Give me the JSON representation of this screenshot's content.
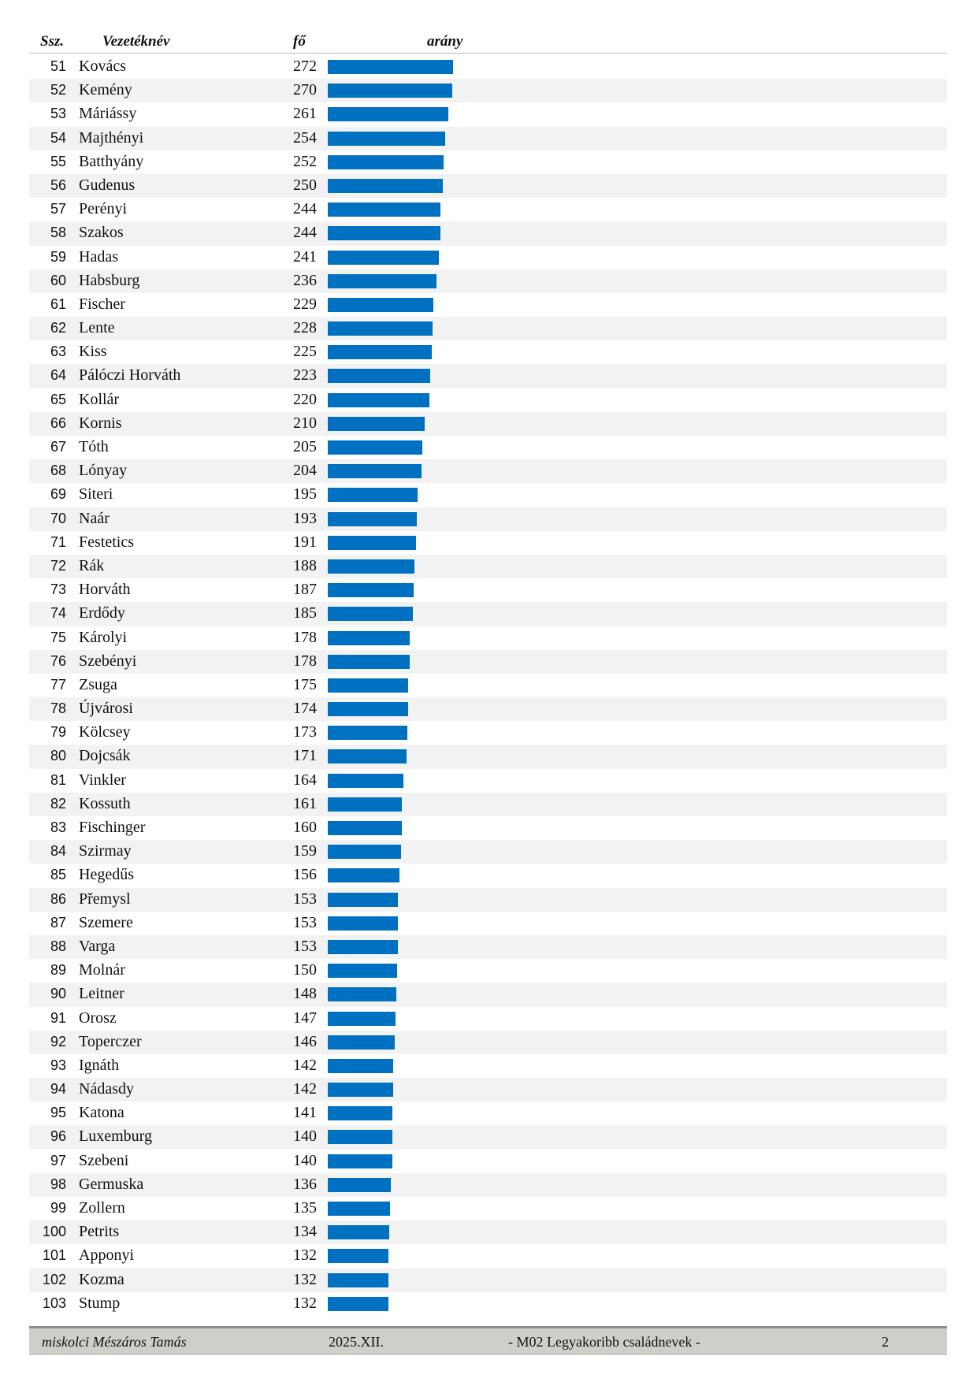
{
  "header": {
    "ssz": "Ssz.",
    "surname": "Vezetéknév",
    "count": "fő",
    "ratio": "arány"
  },
  "colors": {
    "bar": "#0070c0",
    "row_alt": "#f2f2f2",
    "footer_bg": "#d0cec8"
  },
  "chart_data": {
    "type": "bar",
    "max_value": 272,
    "rows": [
      {
        "n": "51",
        "name": "Kovács",
        "count": 272
      },
      {
        "n": "52",
        "name": "Kemény",
        "count": 270
      },
      {
        "n": "53",
        "name": "Máriássy",
        "count": 261
      },
      {
        "n": "54",
        "name": "Majthényi",
        "count": 254
      },
      {
        "n": "55",
        "name": "Batthyány",
        "count": 252
      },
      {
        "n": "56",
        "name": "Gudenus",
        "count": 250
      },
      {
        "n": "57",
        "name": "Perényi",
        "count": 244
      },
      {
        "n": "58",
        "name": "Szakos",
        "count": 244
      },
      {
        "n": "59",
        "name": "Hadas",
        "count": 241
      },
      {
        "n": "60",
        "name": "Habsburg",
        "count": 236
      },
      {
        "n": "61",
        "name": "Fischer",
        "count": 229
      },
      {
        "n": "62",
        "name": "Lente",
        "count": 228
      },
      {
        "n": "63",
        "name": "Kiss",
        "count": 225
      },
      {
        "n": "64",
        "name": "Pálóczi Horváth",
        "count": 223
      },
      {
        "n": "65",
        "name": "Kollár",
        "count": 220
      },
      {
        "n": "66",
        "name": "Kornis",
        "count": 210
      },
      {
        "n": "67",
        "name": "Tóth",
        "count": 205
      },
      {
        "n": "68",
        "name": "Lónyay",
        "count": 204
      },
      {
        "n": "69",
        "name": "Siteri",
        "count": 195
      },
      {
        "n": "70",
        "name": "Naár",
        "count": 193
      },
      {
        "n": "71",
        "name": "Festetics",
        "count": 191
      },
      {
        "n": "72",
        "name": "Rák",
        "count": 188
      },
      {
        "n": "73",
        "name": "Horváth",
        "count": 187
      },
      {
        "n": "74",
        "name": "Erdődy",
        "count": 185
      },
      {
        "n": "75",
        "name": "Károlyi",
        "count": 178
      },
      {
        "n": "76",
        "name": "Szebényi",
        "count": 178
      },
      {
        "n": "77",
        "name": "Zsuga",
        "count": 175
      },
      {
        "n": "78",
        "name": "Újvárosi",
        "count": 174
      },
      {
        "n": "79",
        "name": "Kölcsey",
        "count": 173
      },
      {
        "n": "80",
        "name": "Dojcsák",
        "count": 171
      },
      {
        "n": "81",
        "name": "Vinkler",
        "count": 164
      },
      {
        "n": "82",
        "name": "Kossuth",
        "count": 161
      },
      {
        "n": "83",
        "name": "Fischinger",
        "count": 160
      },
      {
        "n": "84",
        "name": "Szirmay",
        "count": 159
      },
      {
        "n": "85",
        "name": "Hegedűs",
        "count": 156
      },
      {
        "n": "86",
        "name": "Přemysl",
        "count": 153
      },
      {
        "n": "87",
        "name": "Szemere",
        "count": 153
      },
      {
        "n": "88",
        "name": "Varga",
        "count": 153
      },
      {
        "n": "89",
        "name": "Molnár",
        "count": 150
      },
      {
        "n": "90",
        "name": "Leitner",
        "count": 148
      },
      {
        "n": "91",
        "name": "Orosz",
        "count": 147
      },
      {
        "n": "92",
        "name": "Toperczer",
        "count": 146
      },
      {
        "n": "93",
        "name": "Ignáth",
        "count": 142
      },
      {
        "n": "94",
        "name": "Nádasdy",
        "count": 142
      },
      {
        "n": "95",
        "name": "Katona",
        "count": 141
      },
      {
        "n": "96",
        "name": "Luxemburg",
        "count": 140
      },
      {
        "n": "97",
        "name": "Szebeni",
        "count": 140
      },
      {
        "n": "98",
        "name": "Germuska",
        "count": 136
      },
      {
        "n": "99",
        "name": "Zollern",
        "count": 135
      },
      {
        "n": "100",
        "name": "Petrits",
        "count": 134
      },
      {
        "n": "101",
        "name": "Apponyi",
        "count": 132
      },
      {
        "n": "102",
        "name": "Kozma",
        "count": 132
      },
      {
        "n": "103",
        "name": "Stump",
        "count": 132
      }
    ]
  },
  "footer": {
    "author": "miskolci Mészáros Tamás",
    "date": "2025.XII.",
    "title": "- M02  Legyakoribb családnevek -",
    "page": "2"
  }
}
